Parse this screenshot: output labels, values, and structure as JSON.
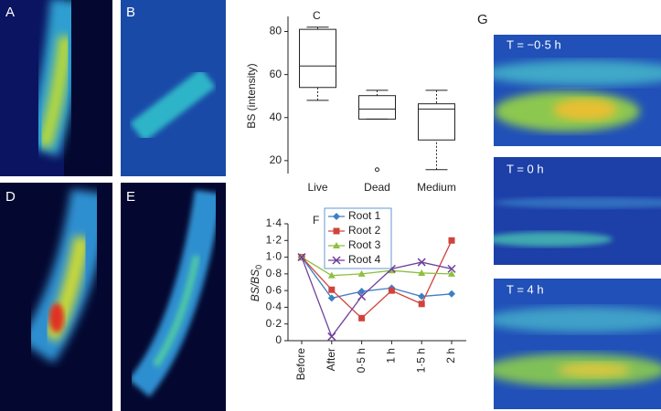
{
  "panel_labels": [
    "A",
    "B",
    "D",
    "E",
    "G"
  ],
  "time_labels": [
    "T = −0·5 h",
    "T = 0 h",
    "T = 4 h"
  ],
  "chart_data": [
    {
      "type": "box",
      "label": "C",
      "ylabel": "BS (intensity)",
      "categories": [
        "Live",
        "Dead",
        "Medium"
      ],
      "boxes": [
        {
          "min": 48,
          "q1": 54,
          "median": 64,
          "q3": 81,
          "max": 82
        },
        {
          "min": 39.3,
          "q1": 39.3,
          "median": 44,
          "q3": 50.2,
          "max": 52.7
        },
        {
          "min": 15.8,
          "q1": 29.6,
          "median": 44,
          "q3": 46.4,
          "max": 52.7
        }
      ],
      "outliers": [
        [],
        [
          15.8
        ],
        []
      ],
      "ylim": [
        14,
        87
      ],
      "yticks": [
        20,
        40,
        60,
        80
      ],
      "color": "#222222"
    },
    {
      "type": "line",
      "label": "F",
      "ylabel": "BS/BS",
      "ylabel_subscript": "0",
      "categories": [
        "Before",
        "After",
        "0·5 h",
        "1 h",
        "1·5 h",
        "2 h"
      ],
      "series": [
        {
          "name": "Root 1",
          "color": "#3d7fc4",
          "marker": "diamond",
          "values": [
            1.0,
            0.51,
            0.59,
            0.63,
            0.53,
            0.56
          ]
        },
        {
          "name": "Root 2",
          "color": "#d0433d",
          "marker": "square",
          "values": [
            1.0,
            0.61,
            0.27,
            0.6,
            0.44,
            1.2
          ]
        },
        {
          "name": "Root 3",
          "color": "#8fbf3f",
          "marker": "triangle",
          "values": [
            1.0,
            0.78,
            0.8,
            0.84,
            0.81,
            0.8
          ]
        },
        {
          "name": "Root 4",
          "color": "#6f3f9b",
          "marker": "x",
          "values": [
            1.0,
            0.05,
            0.53,
            0.86,
            0.94,
            0.86
          ]
        }
      ],
      "ylim": [
        0,
        1.4
      ],
      "yticks": [
        0,
        {
          "value": 0.2,
          "label": "0·2"
        },
        {
          "value": 0.4,
          "label": "0·4"
        },
        {
          "value": 0.6,
          "label": "0·6"
        },
        {
          "value": 0.8,
          "label": "0·8"
        },
        {
          "value": 1.0,
          "label": "1·0"
        },
        {
          "value": 1.2,
          "label": "1·2"
        },
        {
          "value": 1.4,
          "label": "1·4"
        }
      ],
      "legend": "upper-left"
    }
  ]
}
